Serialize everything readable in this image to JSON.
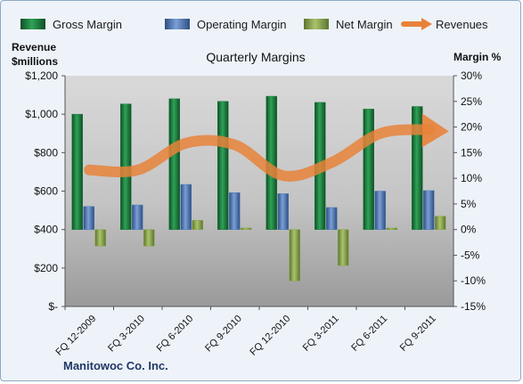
{
  "chart_data": {
    "type": "bar",
    "title": "Quarterly Margins",
    "categories": [
      "FQ 12-2009",
      "FQ 3-2010",
      "FQ 6-2010",
      "FQ 9-2010",
      "FQ 12-2010",
      "FQ 3-2011",
      "FQ 6-2011",
      "FQ 9-2011"
    ],
    "series": [
      {
        "name": "Gross Margin",
        "kind": "bar",
        "axis": "right",
        "color": "#1f7a3e",
        "values": [
          22.5,
          24.5,
          25.5,
          25.0,
          26.0,
          24.8,
          23.5,
          24.0
        ]
      },
      {
        "name": "Operating Margin",
        "kind": "bar",
        "axis": "right",
        "color": "#4f79b8",
        "values": [
          4.5,
          4.8,
          8.8,
          7.2,
          7.0,
          4.3,
          7.5,
          7.6
        ]
      },
      {
        "name": "Net Margin",
        "kind": "bar",
        "axis": "right",
        "color": "#8aa34a",
        "values": [
          -3.2,
          -3.2,
          1.8,
          0.3,
          -10.0,
          -7.0,
          0.3,
          2.6
        ]
      },
      {
        "name": "Revenues",
        "kind": "line",
        "axis": "left",
        "color": "#e8823a",
        "values": [
          710,
          710,
          850,
          840,
          680,
          750,
          900,
          920
        ]
      }
    ],
    "y_left": {
      "label_lines": [
        "Revenue",
        "$millions"
      ],
      "range": [
        0,
        1200
      ],
      "ticks": [
        0,
        200,
        400,
        600,
        800,
        1000,
        1200
      ],
      "tick_labels": [
        "$-",
        "$200",
        "$400",
        "$600",
        "$800",
        "$1,000",
        "$1,200"
      ]
    },
    "y_right": {
      "label": "Margin %",
      "range": [
        -15,
        30
      ],
      "ticks": [
        -15,
        -10,
        -5,
        0,
        5,
        10,
        15,
        20,
        25,
        30
      ],
      "tick_labels": [
        "-15%",
        "-10%",
        "-5%",
        "0%",
        "5%",
        "10%",
        "15%",
        "20%",
        "25%",
        "30%"
      ]
    },
    "legend_position": "top",
    "grid": false,
    "footer": "Manitowoc Co. Inc."
  }
}
